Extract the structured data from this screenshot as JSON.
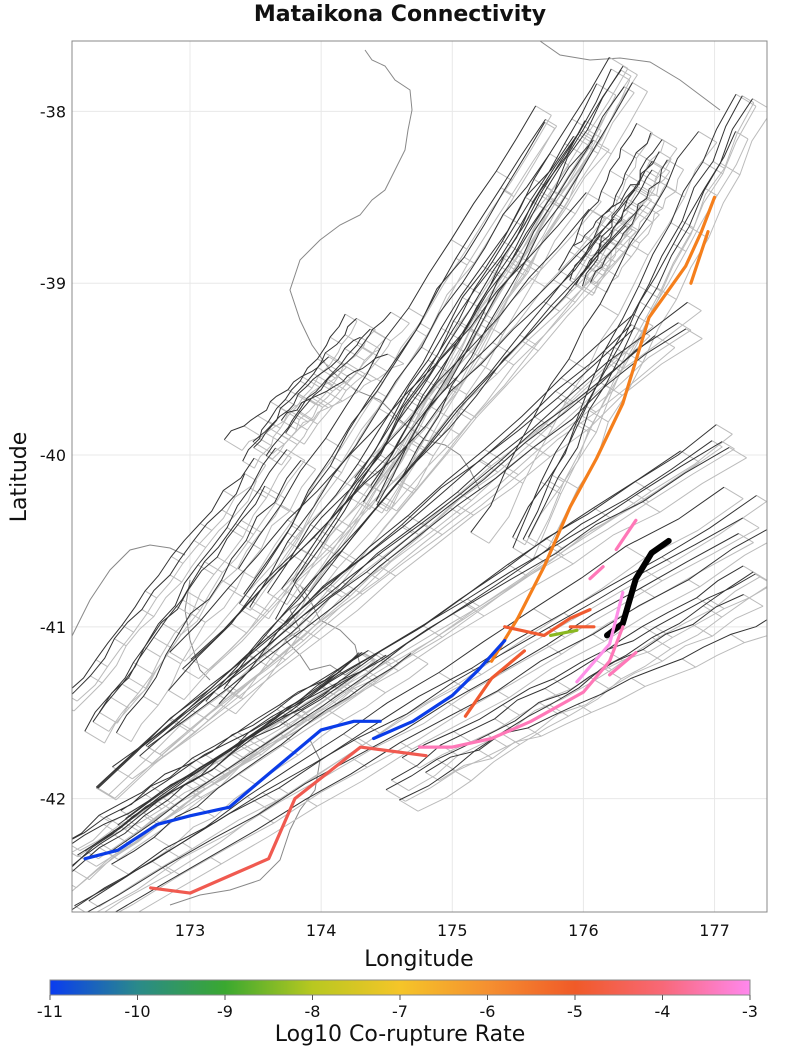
{
  "title": "Mataikona Connectivity",
  "x_axis": {
    "label": "Longitude",
    "range": [
      172.1,
      177.4
    ],
    "ticks": [
      "173",
      "174",
      "175",
      "176",
      "177"
    ],
    "tick_values": [
      173,
      174,
      175,
      176,
      177
    ]
  },
  "y_axis": {
    "label": "Latitude",
    "range": [
      -42.66,
      -37.59
    ],
    "ticks": [
      "-38",
      "-39",
      "-40",
      "-41",
      "-42"
    ],
    "tick_values": [
      -38,
      -39,
      -40,
      -41,
      -42
    ]
  },
  "colorbar": {
    "label": "Log10 Co-rupture Rate",
    "ticks": [
      "-11",
      "-10",
      "-9",
      "-8",
      "-7",
      "-6",
      "-5",
      "-4",
      "-3"
    ],
    "tick_values": [
      -11,
      -10,
      -9,
      -8,
      -7,
      -6,
      -5,
      -4,
      -3
    ],
    "colors": [
      "#0a3cf0",
      "#2a8a8a",
      "#3aa830",
      "#b8c820",
      "#f5c528",
      "#f59030",
      "#f05a28",
      "#f86878",
      "#ff88ee"
    ]
  },
  "source_fault": {
    "name": "Mataikona",
    "color": "#000000"
  },
  "map_colors": {
    "coast": "#888888",
    "fault_trace": "#333333",
    "fault_outline": "#bbbbbb",
    "grid": "#e8e8e8"
  },
  "chart_data": {
    "type": "map",
    "title": "Mataikona Connectivity",
    "xlabel": "Longitude",
    "ylabel": "Latitude",
    "xlim": [
      172.1,
      177.4
    ],
    "ylim": [
      -42.66,
      -37.59
    ],
    "colorbar": {
      "label": "Log10 Co-rupture Rate",
      "range": [
        -11,
        -3
      ]
    },
    "ruptures": [
      {
        "name": "source",
        "rate": null,
        "color": "#000000",
        "coords": [
          [
            176.65,
            -40.5
          ],
          [
            176.52,
            -40.57
          ],
          [
            176.4,
            -40.72
          ],
          [
            176.3,
            -40.98
          ],
          [
            176.18,
            -41.05
          ]
        ]
      },
      {
        "name": "orange-1",
        "rate": -5.6,
        "color": "#f57f1c",
        "coords": [
          [
            177.0,
            -38.5
          ],
          [
            176.9,
            -38.7
          ],
          [
            176.78,
            -38.9
          ],
          [
            176.5,
            -39.2
          ],
          [
            176.3,
            -39.7
          ],
          [
            176.1,
            -40.02
          ],
          [
            175.9,
            -40.3
          ],
          [
            175.7,
            -40.65
          ],
          [
            175.5,
            -40.95
          ],
          [
            175.3,
            -41.2
          ]
        ]
      },
      {
        "name": "orange-2",
        "rate": -5.6,
        "color": "#f57f1c",
        "coords": [
          [
            176.95,
            -38.7
          ],
          [
            176.82,
            -39.0
          ]
        ]
      },
      {
        "name": "red-1",
        "rate": -4.8,
        "color": "#f05a30",
        "coords": [
          [
            175.4,
            -41.0
          ],
          [
            175.7,
            -41.05
          ],
          [
            175.9,
            -40.95
          ],
          [
            176.05,
            -40.9
          ]
        ]
      },
      {
        "name": "red-2",
        "rate": -4.8,
        "color": "#f05a30",
        "coords": [
          [
            175.1,
            -41.52
          ],
          [
            175.3,
            -41.3
          ],
          [
            175.55,
            -41.14
          ]
        ]
      },
      {
        "name": "red-3",
        "rate": -4.8,
        "color": "#f05a30",
        "coords": [
          [
            175.9,
            -41.0
          ],
          [
            176.08,
            -41.0
          ]
        ]
      },
      {
        "name": "red-4",
        "rate": -4.2,
        "color": "#f05a50",
        "coords": [
          [
            172.7,
            -42.52
          ],
          [
            173.0,
            -42.55
          ],
          [
            173.3,
            -42.45
          ],
          [
            173.6,
            -42.35
          ],
          [
            173.8,
            -42.0
          ],
          [
            174.3,
            -41.7
          ],
          [
            174.8,
            -41.75
          ]
        ]
      },
      {
        "name": "green-1",
        "rate": -8.2,
        "color": "#8ab820",
        "coords": [
          [
            175.75,
            -41.05
          ],
          [
            175.95,
            -41.02
          ]
        ]
      },
      {
        "name": "blue-1",
        "rate": -10.8,
        "color": "#0a3ce8",
        "coords": [
          [
            172.2,
            -42.35
          ],
          [
            172.45,
            -42.3
          ],
          [
            172.75,
            -42.15
          ],
          [
            173.0,
            -42.1
          ],
          [
            173.3,
            -42.05
          ],
          [
            173.5,
            -41.92
          ],
          [
            174.0,
            -41.6
          ],
          [
            174.25,
            -41.55
          ],
          [
            174.45,
            -41.55
          ]
        ]
      },
      {
        "name": "blue-2",
        "rate": -10.8,
        "color": "#0a3ce8",
        "coords": [
          [
            174.4,
            -41.65
          ],
          [
            174.7,
            -41.55
          ],
          [
            175.0,
            -41.4
          ],
          [
            175.2,
            -41.25
          ],
          [
            175.4,
            -41.08
          ]
        ]
      },
      {
        "name": "pink-1",
        "rate": -3.4,
        "color": "#ff78b8",
        "coords": [
          [
            174.75,
            -41.7
          ],
          [
            175.0,
            -41.7
          ],
          [
            175.3,
            -41.65
          ],
          [
            175.6,
            -41.55
          ],
          [
            176.0,
            -41.38
          ],
          [
            176.2,
            -41.2
          ],
          [
            176.3,
            -41.0
          ]
        ]
      },
      {
        "name": "pink-2",
        "rate": -3.4,
        "color": "#ff78b8",
        "coords": [
          [
            176.25,
            -40.55
          ],
          [
            176.4,
            -40.38
          ]
        ]
      },
      {
        "name": "pink-3",
        "rate": -3.4,
        "color": "#ff78b8",
        "coords": [
          [
            176.05,
            -40.72
          ],
          [
            176.15,
            -40.65
          ]
        ]
      },
      {
        "name": "pink-4",
        "rate": -3.4,
        "color": "#ff78b8",
        "coords": [
          [
            176.2,
            -41.28
          ],
          [
            176.4,
            -41.15
          ]
        ]
      },
      {
        "name": "pink-5",
        "rate": -3.0,
        "color": "#ff90e8",
        "coords": [
          [
            175.95,
            -41.32
          ],
          [
            176.2,
            -41.1
          ],
          [
            176.3,
            -40.8
          ]
        ]
      }
    ]
  }
}
